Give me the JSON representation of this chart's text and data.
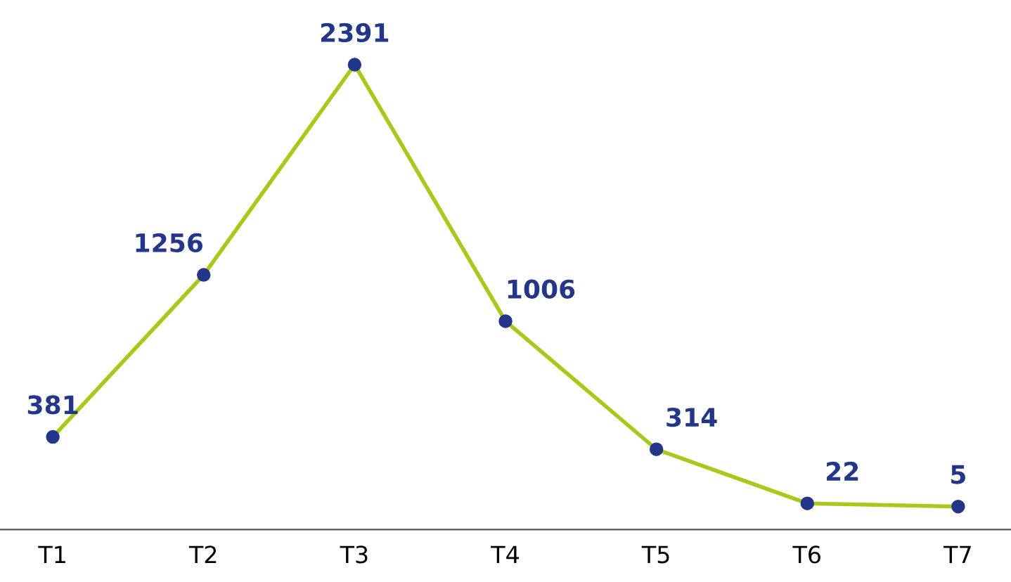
{
  "chart_data": {
    "type": "line",
    "categories": [
      "T1",
      "T2",
      "T3",
      "T4",
      "T5",
      "T6",
      "T7"
    ],
    "series": [
      {
        "color": "#a8c81c",
        "colors": [
          "#23368a",
          "#23368a",
          "#23368a",
          "#23368a",
          "#23368a",
          "#23368a",
          "#23368a"
        ],
        "values": [
          381,
          1256,
          2391,
          1006,
          314,
          22,
          5
        ]
      }
    ],
    "data_labels": true,
    "marker": "circle",
    "line_style": "solid",
    "grid": false,
    "legend": false,
    "tick_labels": "x"
  }
}
